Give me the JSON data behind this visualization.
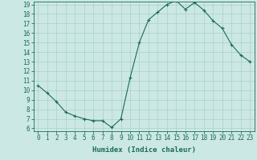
{
  "xlabel": "Humidex (Indice chaleur)",
  "x": [
    0,
    1,
    2,
    3,
    4,
    5,
    6,
    7,
    8,
    9,
    10,
    11,
    12,
    13,
    14,
    15,
    16,
    17,
    18,
    19,
    20,
    21,
    22,
    23
  ],
  "y": [
    10.5,
    9.7,
    8.8,
    7.7,
    7.3,
    7.0,
    6.8,
    6.8,
    6.1,
    7.0,
    11.3,
    15.0,
    17.4,
    18.2,
    19.0,
    19.4,
    18.5,
    19.2,
    18.4,
    17.3,
    16.5,
    14.8,
    13.7,
    13.0
  ],
  "line_color": "#1a6b5a",
  "marker": "+",
  "background_color": "#cce8e4",
  "grid_color": "#aacfcb",
  "axis_color": "#1a6b5a",
  "ylim_min": 6,
  "ylim_max": 19,
  "xlim_min": 0,
  "xlim_max": 23,
  "yticks": [
    6,
    7,
    8,
    9,
    10,
    11,
    12,
    13,
    14,
    15,
    16,
    17,
    18,
    19
  ],
  "xticks": [
    0,
    1,
    2,
    3,
    4,
    5,
    6,
    7,
    8,
    9,
    10,
    11,
    12,
    13,
    14,
    15,
    16,
    17,
    18,
    19,
    20,
    21,
    22,
    23
  ],
  "tick_fontsize": 5.5,
  "label_fontsize": 6.5
}
